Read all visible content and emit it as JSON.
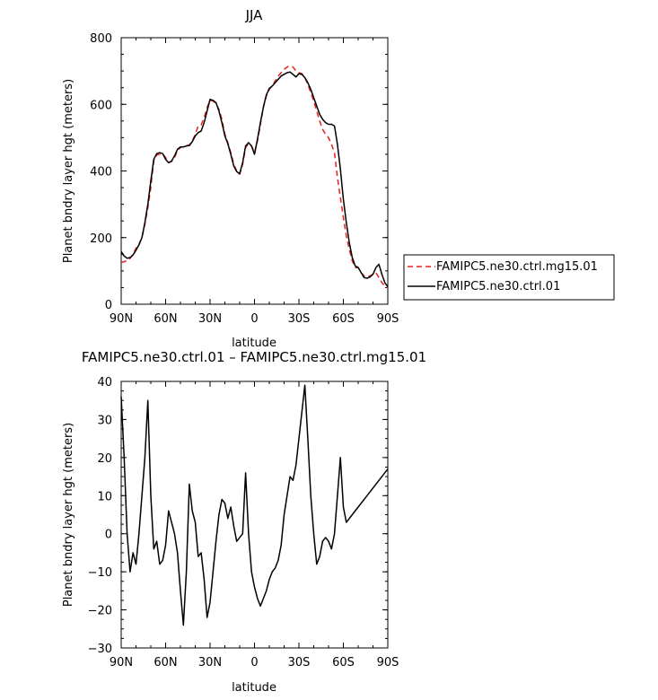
{
  "chart_data": [
    {
      "type": "line",
      "title": "JJA",
      "xlabel": "latitude",
      "ylabel": "Planet bndry layer hgt (meters)",
      "xlim": [
        90,
        -90
      ],
      "ylim": [
        0,
        800
      ],
      "x_ticks": [
        90,
        60,
        30,
        0,
        -30,
        -60,
        -90
      ],
      "x_tick_labels": [
        "90N",
        "60N",
        "30N",
        "0",
        "30S",
        "60S",
        "90S"
      ],
      "y_ticks": [
        0,
        200,
        400,
        600,
        800
      ],
      "y_tick_labels": [
        "0",
        "200",
        "400",
        "600",
        "800"
      ],
      "grid": false,
      "legend_position": "right",
      "series": [
        {
          "name": "FAMIPC5.ne30.ctrl.mg15.01",
          "color": "#e8201e",
          "dash": "dashed",
          "x": [
            90,
            88,
            86,
            84,
            82,
            80,
            78,
            76,
            74,
            72,
            70,
            68,
            66,
            64,
            62,
            60,
            58,
            56,
            54,
            52,
            50,
            48,
            46,
            44,
            42,
            40,
            38,
            36,
            34,
            32,
            30,
            28,
            26,
            24,
            22,
            20,
            18,
            16,
            14,
            12,
            10,
            8,
            6,
            4,
            2,
            0,
            -2,
            -4,
            -6,
            -8,
            -10,
            -12,
            -14,
            -16,
            -18,
            -20,
            -22,
            -24,
            -26,
            -28,
            -30,
            -32,
            -34,
            -36,
            -38,
            -40,
            -42,
            -44,
            -46,
            -48,
            -50,
            -52,
            -54,
            -56,
            -58,
            -60,
            -62,
            -64,
            -66,
            -68,
            -70,
            -72,
            -74,
            -76,
            -78,
            -80,
            -82,
            -84,
            -86,
            -88,
            -90
          ],
          "y": [
            125,
            128,
            130,
            138,
            150,
            168,
            180,
            200,
            240,
            290,
            350,
            430,
            448,
            450,
            452,
            440,
            425,
            428,
            440,
            462,
            470,
            474,
            476,
            478,
            490,
            510,
            535,
            538,
            560,
            590,
            612,
            610,
            602,
            585,
            555,
            510,
            485,
            455,
            420,
            400,
            390,
            420,
            470,
            482,
            475,
            455,
            490,
            540,
            590,
            625,
            645,
            655,
            670,
            685,
            695,
            705,
            712,
            715,
            712,
            700,
            695,
            692,
            680,
            660,
            635,
            610,
            580,
            550,
            525,
            510,
            500,
            480,
            455,
            380,
            320,
            260,
            205,
            165,
            130,
            110,
            110,
            95,
            85,
            82,
            85,
            90,
            95,
            80,
            65,
            55,
            50
          ]
        },
        {
          "name": "FAMIPC5.ne30.ctrl.01",
          "color": "#000000",
          "dash": "solid",
          "x": [
            90,
            88,
            86,
            84,
            82,
            80,
            78,
            76,
            74,
            72,
            70,
            68,
            66,
            64,
            62,
            60,
            58,
            56,
            54,
            52,
            50,
            48,
            46,
            44,
            42,
            40,
            38,
            36,
            34,
            32,
            30,
            28,
            26,
            24,
            22,
            20,
            18,
            16,
            14,
            12,
            10,
            8,
            6,
            4,
            2,
            0,
            -2,
            -4,
            -6,
            -8,
            -10,
            -12,
            -14,
            -16,
            -18,
            -20,
            -22,
            -24,
            -26,
            -28,
            -30,
            -32,
            -34,
            -36,
            -38,
            -40,
            -42,
            -44,
            -46,
            -48,
            -50,
            -52,
            -54,
            -56,
            -58,
            -60,
            -62,
            -64,
            -66,
            -68,
            -70,
            -72,
            -74,
            -76,
            -78,
            -80,
            -82,
            -84,
            -86,
            -88,
            -90
          ],
          "y": [
            158,
            145,
            138,
            140,
            148,
            162,
            178,
            200,
            245,
            300,
            370,
            435,
            452,
            455,
            452,
            435,
            425,
            430,
            445,
            465,
            472,
            472,
            475,
            476,
            488,
            505,
            515,
            520,
            545,
            580,
            615,
            612,
            605,
            580,
            545,
            505,
            482,
            450,
            415,
            398,
            392,
            425,
            475,
            485,
            475,
            450,
            495,
            545,
            592,
            628,
            648,
            655,
            665,
            675,
            685,
            690,
            695,
            697,
            690,
            682,
            692,
            690,
            680,
            665,
            645,
            620,
            595,
            570,
            555,
            545,
            540,
            540,
            535,
            480,
            405,
            315,
            245,
            185,
            140,
            115,
            110,
            95,
            80,
            78,
            82,
            90,
            110,
            120,
            90,
            65,
            52
          ]
        }
      ]
    },
    {
      "type": "line",
      "title": "FAMIPC5.ne30.ctrl.01 – FAMIPC5.ne30.ctrl.mg15.01",
      "xlabel": "latitude",
      "ylabel": "Planet bndry layer hgt (meters)",
      "xlim": [
        90,
        -90
      ],
      "ylim": [
        -30,
        40
      ],
      "x_ticks": [
        90,
        60,
        30,
        0,
        -30,
        -60,
        -90
      ],
      "x_tick_labels": [
        "90N",
        "60N",
        "30N",
        "0",
        "30S",
        "60S",
        "90S"
      ],
      "y_ticks": [
        -30,
        -20,
        -10,
        0,
        10,
        20,
        30,
        40
      ],
      "y_tick_labels": [
        "−30",
        "−20",
        "−10",
        "0",
        "10",
        "20",
        "30",
        "40"
      ],
      "grid": false,
      "series": [
        {
          "color": "#000000",
          "dash": "solid",
          "x": [
            90,
            88,
            86,
            84,
            82,
            80,
            78,
            76,
            74,
            72,
            70,
            68,
            66,
            64,
            62,
            60,
            58,
            56,
            54,
            52,
            50,
            48,
            46,
            44,
            42,
            40,
            38,
            36,
            34,
            32,
            30,
            28,
            26,
            24,
            22,
            20,
            18,
            16,
            14,
            12,
            10,
            8,
            6,
            4,
            2,
            0,
            -2,
            -4,
            -6,
            -8,
            -10,
            -12,
            -14,
            -16,
            -18,
            -20,
            -22,
            -24,
            -26,
            -28,
            -30,
            -32,
            -34,
            -36,
            -38,
            -40,
            -42,
            -44,
            -46,
            -48,
            -50,
            -52,
            -54,
            -56,
            -58,
            -60,
            -62,
            -64,
            -66,
            -68,
            -70,
            -72,
            -74,
            -76,
            -78,
            -80,
            -82,
            -84,
            -86,
            -88,
            -90
          ],
          "y": [
            36,
            20,
            0,
            -10,
            -5,
            -8,
            0,
            10,
            20,
            35,
            10,
            -4,
            -2,
            -8,
            -7,
            -3,
            6,
            3,
            0,
            -5,
            -15,
            -24,
            -10,
            13,
            6,
            3,
            -6,
            -5,
            -12,
            -22,
            -18,
            -10,
            -2,
            5,
            9,
            8,
            4,
            7,
            2,
            -2,
            -1,
            0,
            16,
            0,
            -10,
            -14,
            -17,
            -19,
            -17,
            -15,
            -12,
            -10,
            -9,
            -7,
            -3,
            5,
            10,
            15,
            14,
            18,
            25,
            32,
            39,
            25,
            10,
            0,
            -8,
            -6,
            -2,
            -1,
            -2,
            -4,
            0,
            10,
            20,
            7,
            3,
            4,
            5,
            6,
            7,
            8,
            9,
            10,
            11,
            12,
            13,
            14,
            15,
            16,
            17
          ]
        }
      ]
    }
  ],
  "legend_box": {
    "entries": [
      {
        "label": "FAMIPC5.ne30.ctrl.mg15.01",
        "color": "#e8201e",
        "dash": "dashed"
      },
      {
        "label": "FAMIPC5.ne30.ctrl.01",
        "color": "#000000",
        "dash": "solid"
      }
    ]
  }
}
